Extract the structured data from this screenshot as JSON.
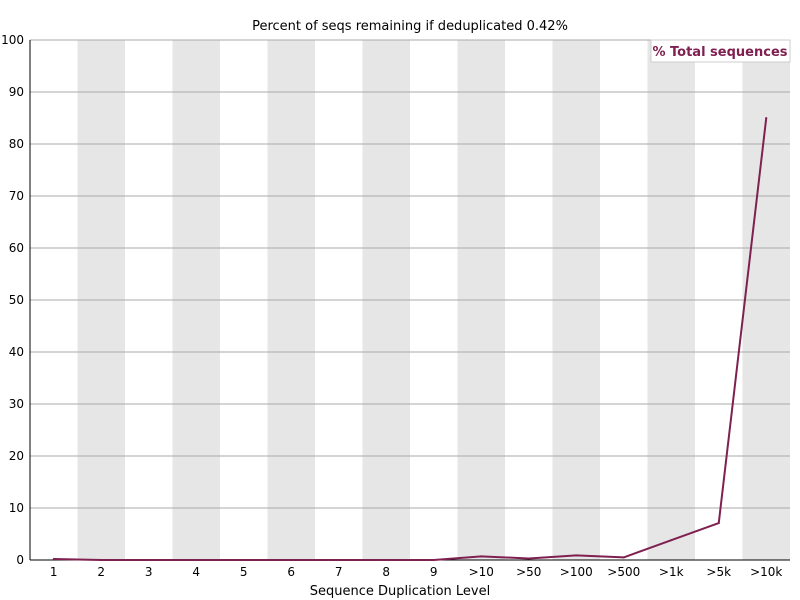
{
  "chart_data": {
    "type": "line",
    "title": "Percent of seqs remaining if deduplicated 0.42%",
    "xlabel": "Sequence Duplication Level",
    "ylabel": "",
    "categories": [
      "1",
      "2",
      "3",
      "4",
      "5",
      "6",
      "7",
      "8",
      "9",
      ">10",
      ">50",
      ">100",
      ">500",
      ">1k",
      ">5k",
      ">10k"
    ],
    "ylim": [
      0,
      100
    ],
    "yticks": [
      0,
      10,
      20,
      30,
      40,
      50,
      60,
      70,
      80,
      90,
      100
    ],
    "grid": true,
    "legend_position": "top-right",
    "series": [
      {
        "name": "% Total sequences",
        "color": "#7f2050",
        "values": [
          0.2,
          0.0,
          0.0,
          0.0,
          0.0,
          0.0,
          0.0,
          0.0,
          0.0,
          0.7,
          0.3,
          0.9,
          0.5,
          3.8,
          7.1,
          85.0
        ]
      }
    ],
    "band_color": "#e6e6e6",
    "gridline_color": "#aaaaaa"
  }
}
